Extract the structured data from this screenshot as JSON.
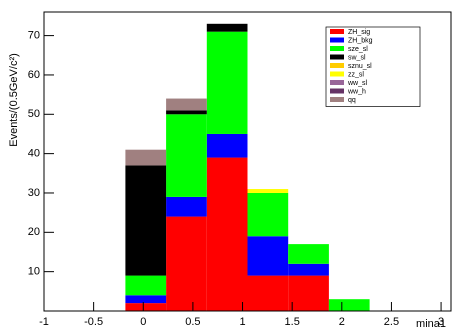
{
  "chart_data": {
    "type": "histogram",
    "xlabel": "mina1",
    "ylabel": "Events/(0.5GeV/c²)",
    "bins": [
      -1,
      -0.59,
      -0.18,
      0.23,
      0.64,
      1.05,
      1.46,
      1.87,
      2.28,
      2.69,
      3.1
    ],
    "series": [
      {
        "name": "ZH_sig",
        "color": "#ff0000",
        "values": [
          0,
          0,
          2,
          24,
          39,
          9,
          9,
          0,
          0,
          0
        ]
      },
      {
        "name": "ZH_bkg",
        "color": "#0000ff",
        "values": [
          0,
          0,
          2,
          5,
          6,
          10,
          3,
          0,
          0,
          0
        ]
      },
      {
        "name": "sze_sl",
        "color": "#00ff00",
        "values": [
          0,
          0,
          5,
          21,
          26,
          11,
          5,
          3,
          0,
          0
        ]
      },
      {
        "name": "sw_sl",
        "color": "#000000",
        "values": [
          0,
          0,
          28,
          1,
          2,
          0,
          0,
          0,
          0,
          0
        ]
      },
      {
        "name": "sznu_sl",
        "color": "#ffcc00",
        "values": [
          0,
          0,
          0,
          0,
          0,
          0,
          0,
          0,
          0,
          0
        ]
      },
      {
        "name": "zz_sl",
        "color": "#ffff00",
        "values": [
          0,
          0,
          0,
          0,
          0,
          1,
          0,
          0,
          0,
          0
        ]
      },
      {
        "name": "ww_sl",
        "color": "#996699",
        "values": [
          0,
          0,
          0,
          0,
          0,
          0,
          0,
          0,
          0,
          0
        ]
      },
      {
        "name": "ww_h",
        "color": "#663366",
        "values": [
          0,
          0,
          0,
          0,
          0,
          0,
          0,
          0,
          0,
          0
        ]
      },
      {
        "name": "qq",
        "color": "#a08080",
        "values": [
          0,
          0,
          4,
          3,
          0,
          0,
          0,
          0,
          0,
          0
        ]
      }
    ],
    "xlim": [
      -1,
      3.1
    ],
    "ylim": [
      0,
      76
    ],
    "xticks": [
      -1,
      -0.5,
      0,
      0.5,
      1,
      1.5,
      2,
      2.5,
      3
    ],
    "yticks": [
      10,
      20,
      30,
      40,
      50,
      60,
      70
    ],
    "legend": "upper right"
  }
}
